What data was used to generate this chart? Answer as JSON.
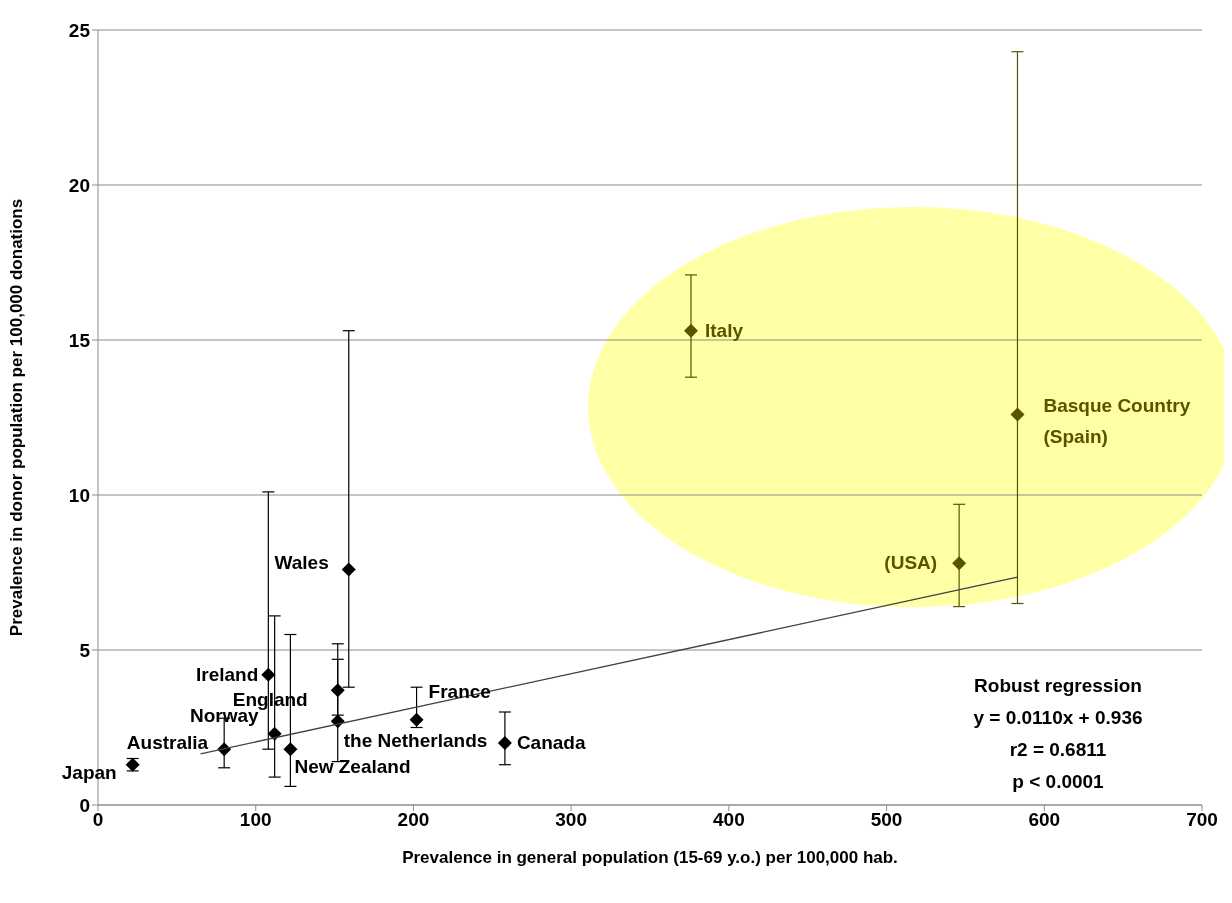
{
  "chart_data": {
    "type": "scatter",
    "xlabel": "Prevalence in general population  (15-69 y.o.) per 100,000 hab.",
    "ylabel": "Prevalence in donor population per 100,000 donations",
    "xlim": [
      0,
      700
    ],
    "xticks": [
      0,
      100,
      200,
      300,
      400,
      500,
      600,
      700
    ],
    "ylim": [
      0,
      25
    ],
    "yticks": [
      0,
      5,
      10,
      15,
      20,
      25
    ],
    "grid": "y",
    "marker": "diamond",
    "legend": false,
    "series": [
      {
        "x": [
          22,
          80,
          108,
          112,
          122,
          152,
          152,
          159,
          202,
          258,
          376,
          546,
          583
        ],
        "values": [
          1.3,
          1.8,
          4.2,
          2.3,
          1.8,
          3.7,
          2.7,
          7.6,
          2.75,
          2.0,
          15.3,
          7.8,
          12.6
        ],
        "colors": [
          "#000000",
          "#000000",
          "#000000",
          "#000000",
          "#000000",
          "#000000",
          "#000000",
          "#000000",
          "#000000",
          "#000000",
          "#595300",
          "#595300",
          "#595300"
        ],
        "errors": [
          [
            1.1,
            1.5
          ],
          [
            1.2,
            2.8
          ],
          [
            1.8,
            10.1
          ],
          [
            0.9,
            6.1
          ],
          [
            0.6,
            5.5
          ],
          [
            2.9,
            4.7
          ],
          [
            1.4,
            5.2
          ],
          [
            3.8,
            15.3
          ],
          [
            2.5,
            3.8
          ],
          [
            1.3,
            3.0
          ],
          [
            13.8,
            17.1
          ],
          [
            6.4,
            9.7
          ],
          [
            6.5,
            24.3
          ]
        ]
      },
      {
        "type": "line",
        "marker": "none",
        "color": "#404040",
        "x": [
          65,
          583
        ],
        "values": [
          1.65,
          7.35
        ]
      }
    ],
    "annotations": [
      {
        "text": "Japan",
        "x": 22,
        "y": 1.3
      },
      {
        "text": "Australia",
        "x": 80,
        "y": 1.8
      },
      {
        "text": "Ireland",
        "x": 108,
        "y": 4.2
      },
      {
        "text": "Norway",
        "x": 112,
        "y": 2.3
      },
      {
        "text": "New Zealand",
        "x": 122,
        "y": 1.8
      },
      {
        "text": "England",
        "x": 152,
        "y": 3.7
      },
      {
        "text": "the Netherlands",
        "x": 152,
        "y": 2.7
      },
      {
        "text": "Wales",
        "x": 159,
        "y": 7.6
      },
      {
        "text": "France",
        "x": 202,
        "y": 2.75
      },
      {
        "text": "Canada",
        "x": 258,
        "y": 2.0
      },
      {
        "text": "Italy",
        "x": 376,
        "y": 15.3
      },
      {
        "text": "(USA)",
        "x": 546,
        "y": 7.8
      },
      {
        "text": "Basque Country\n(Spain)",
        "x": 583,
        "y": 12.6
      },
      "Robust regression",
      "y = 0.0110x + 0.936",
      "r2 = 0.6811",
      "p < 0.0001"
    ]
  }
}
